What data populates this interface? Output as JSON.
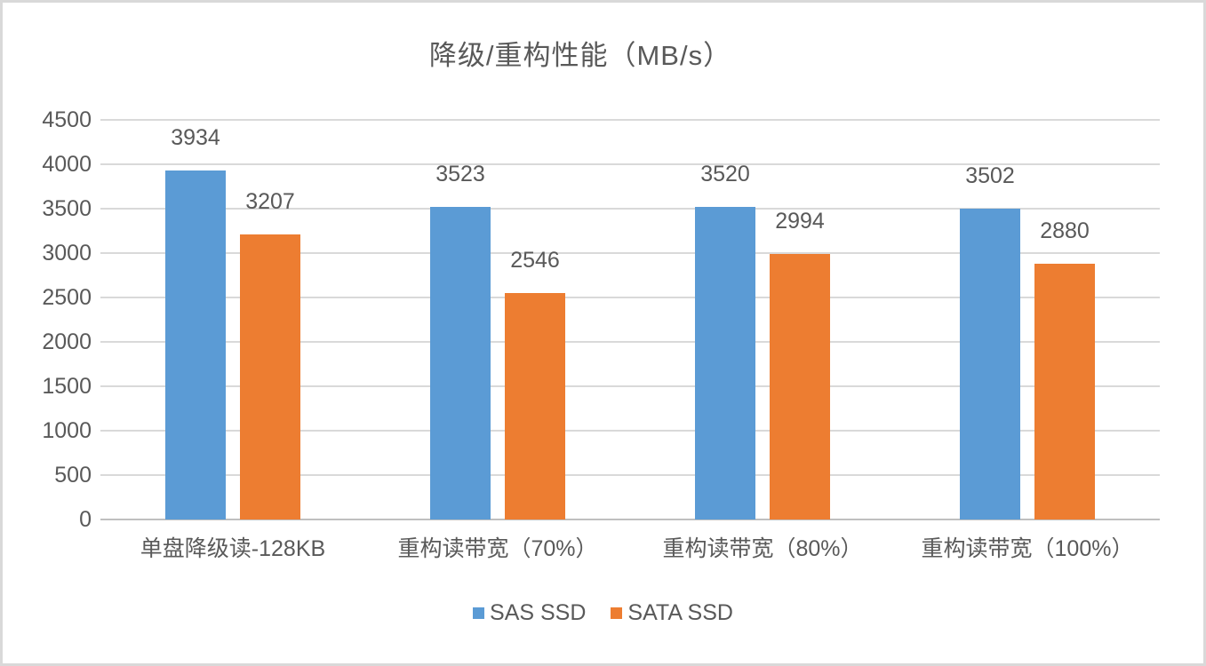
{
  "chart_data": {
    "type": "bar",
    "title": "降级/重构性能（MB/s）",
    "xlabel": "",
    "ylabel": "",
    "categories": [
      "单盘降级读-128KB",
      "重构读带宽（70%）",
      "重构读带宽（80%）",
      "重构读带宽（100%）"
    ],
    "series": [
      {
        "name": "SAS SSD",
        "color": "#5B9BD5",
        "values": [
          3934,
          3523,
          3520,
          3502
        ]
      },
      {
        "name": "SATA SSD",
        "color": "#ED7D31",
        "values": [
          3207,
          2546,
          2994,
          2880
        ]
      }
    ],
    "ylim": [
      0,
      4500
    ],
    "yticks": [
      0,
      500,
      1000,
      1500,
      2000,
      2500,
      3000,
      3500,
      4000,
      4500
    ],
    "grid": true,
    "data_labels": true,
    "legend_position": "bottom"
  },
  "colors": {
    "text": "#595959",
    "gridline": "#D9D9D9",
    "axis_line": "#BFBFBF",
    "border": "#D9D9D9",
    "background": "#FFFFFF"
  }
}
